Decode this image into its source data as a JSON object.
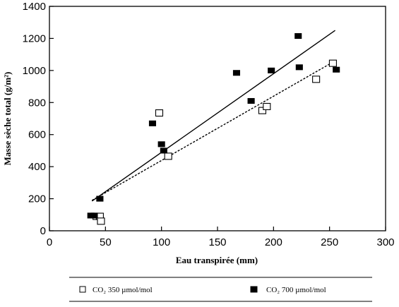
{
  "chart_data": {
    "type": "scatter",
    "title": "",
    "xlabel": "Eau transpirée (mm)",
    "ylabel": "Masse sèche total (g/m²)",
    "xlim": [
      0,
      300
    ],
    "ylim": [
      0,
      1400
    ],
    "xticks": [
      0,
      50,
      100,
      150,
      200,
      250,
      300
    ],
    "yticks": [
      0,
      200,
      400,
      600,
      800,
      1000,
      1200,
      1400
    ],
    "grid": false,
    "legend_position": "bottom",
    "series": [
      {
        "name": "CO₂ 350 µmol/mol",
        "marker": "open-square",
        "color": "#000000",
        "points": [
          {
            "x": 42,
            "y": 90
          },
          {
            "x": 45,
            "y": 90
          },
          {
            "x": 46,
            "y": 60
          },
          {
            "x": 98,
            "y": 735
          },
          {
            "x": 106,
            "y": 465
          },
          {
            "x": 190,
            "y": 750
          },
          {
            "x": 194,
            "y": 775
          },
          {
            "x": 238,
            "y": 945
          },
          {
            "x": 253,
            "y": 1045
          }
        ],
        "trendline": {
          "style": "dotted",
          "from": {
            "x": 38,
            "y": 190
          },
          "to": {
            "x": 255,
            "y": 1060
          }
        }
      },
      {
        "name": "CO₂ 700 µmol/mol",
        "marker": "filled-square",
        "color": "#000000",
        "points": [
          {
            "x": 37,
            "y": 95
          },
          {
            "x": 40,
            "y": 95
          },
          {
            "x": 45,
            "y": 200
          },
          {
            "x": 92,
            "y": 670
          },
          {
            "x": 100,
            "y": 540
          },
          {
            "x": 102,
            "y": 500
          },
          {
            "x": 167,
            "y": 985
          },
          {
            "x": 180,
            "y": 810
          },
          {
            "x": 198,
            "y": 1000
          },
          {
            "x": 222,
            "y": 1215
          },
          {
            "x": 223,
            "y": 1020
          },
          {
            "x": 256,
            "y": 1005
          }
        ],
        "trendline": {
          "style": "solid",
          "from": {
            "x": 38,
            "y": 185
          },
          "to": {
            "x": 255,
            "y": 1250
          }
        }
      }
    ]
  }
}
